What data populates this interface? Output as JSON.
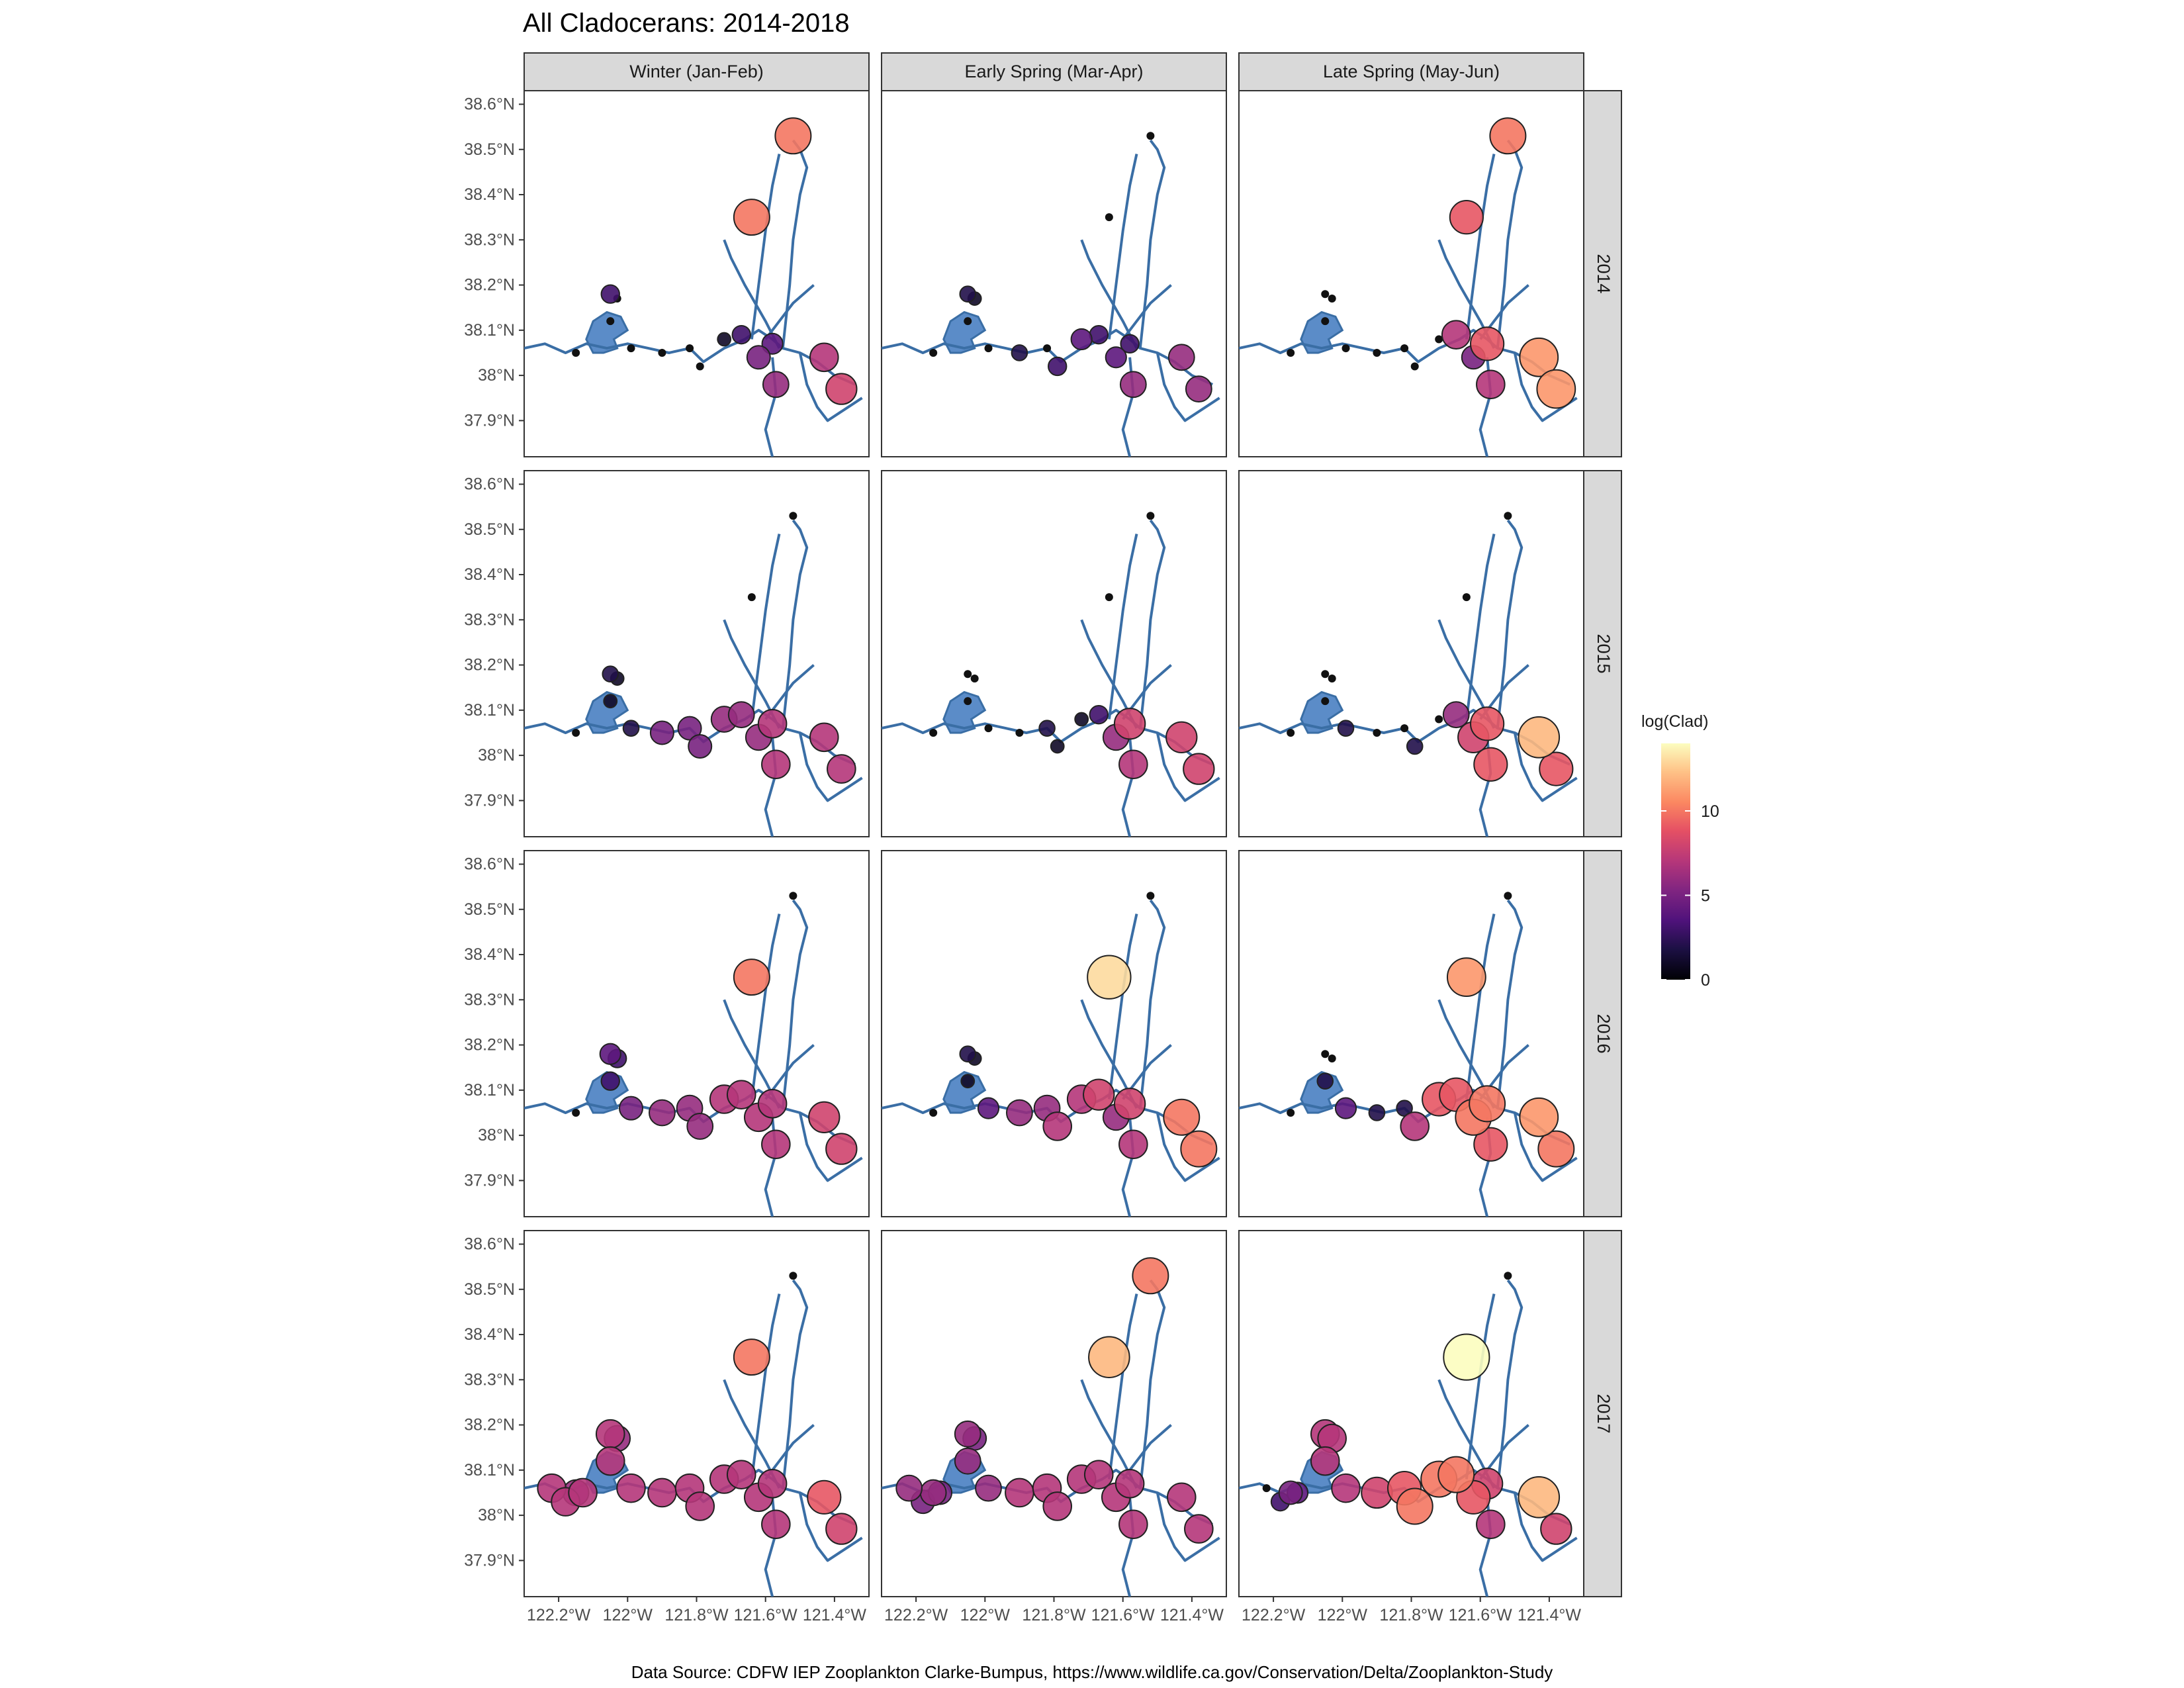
{
  "title": "All Cladocerans: 2014-2018",
  "caption": "Data Source: CDFW IEP Zooplankton Clarke-Bumpus, https://www.wildlife.ca.gov/Conservation/Delta/Zooplankton-Study",
  "facets": {
    "columns": [
      "Winter (Jan-Feb)",
      "Early Spring (Mar-Apr)",
      "Late Spring (May-Jun)"
    ],
    "rows": [
      "2014",
      "2015",
      "2016",
      "2017"
    ]
  },
  "axes": {
    "x_ticks": [
      "122.2°W",
      "122°W",
      "121.8°W",
      "121.6°W",
      "121.4°W"
    ],
    "y_ticks": [
      "38.6°N",
      "38.5°N",
      "38.4°N",
      "38.3°N",
      "38.2°N",
      "38.1°N",
      "38°N",
      "37.9°N"
    ]
  },
  "legend": {
    "title": "log(Clad)",
    "breaks": [
      "0",
      "5",
      "10"
    ],
    "range": [
      0,
      14
    ]
  },
  "colors": {
    "water_line": "#3a6ea5",
    "water_fill": "#5b8cc8",
    "strip_fill": "#d9d9d9",
    "point_outline": "#222222",
    "zero_point": "#111111"
  },
  "chart_data": {
    "type": "scatter",
    "description_of_encoding": "point size and color = log(Clad) per station",
    "stations": [
      {
        "id": "S1",
        "lon": -121.52,
        "lat": 38.53
      },
      {
        "id": "S2",
        "lon": -121.64,
        "lat": 38.35
      },
      {
        "id": "S3",
        "lon": -122.05,
        "lat": 38.18
      },
      {
        "id": "S4",
        "lon": -122.03,
        "lat": 38.17
      },
      {
        "id": "S5",
        "lon": -122.05,
        "lat": 38.12
      },
      {
        "id": "S6",
        "lon": -122.15,
        "lat": 38.05
      },
      {
        "id": "S7",
        "lon": -121.99,
        "lat": 38.06
      },
      {
        "id": "S8",
        "lon": -121.9,
        "lat": 38.05
      },
      {
        "id": "S9",
        "lon": -121.82,
        "lat": 38.06
      },
      {
        "id": "S10",
        "lon": -121.79,
        "lat": 38.02
      },
      {
        "id": "S11",
        "lon": -121.72,
        "lat": 38.08
      },
      {
        "id": "S12",
        "lon": -121.67,
        "lat": 38.09
      },
      {
        "id": "S13",
        "lon": -121.62,
        "lat": 38.04
      },
      {
        "id": "S14",
        "lon": -121.58,
        "lat": 38.07
      },
      {
        "id": "S15",
        "lon": -121.57,
        "lat": 37.98
      },
      {
        "id": "S16",
        "lon": -121.43,
        "lat": 38.04
      },
      {
        "id": "S17",
        "lon": -121.38,
        "lat": 37.97
      },
      {
        "id": "S18",
        "lon": -122.22,
        "lat": 38.06
      },
      {
        "id": "S19",
        "lon": -122.18,
        "lat": 38.03
      },
      {
        "id": "S20",
        "lon": -122.13,
        "lat": 38.05
      }
    ],
    "values": {
      "2014": {
        "Winter (Jan-Feb)": [
          10,
          10,
          3,
          0,
          0,
          0,
          0,
          0,
          0,
          0,
          1,
          3,
          5,
          4,
          6,
          7,
          8,
          null,
          null,
          null
        ],
        "Early Spring (Mar-Apr)": [
          0,
          0,
          2,
          1,
          0,
          0,
          0,
          2,
          0,
          3,
          4,
          3,
          4,
          3,
          6,
          6,
          6,
          null,
          null,
          null
        ],
        "Late Spring (May-Jun)": [
          10,
          9,
          0,
          0,
          0,
          0,
          0,
          0,
          0,
          0,
          0,
          7,
          5,
          9,
          7,
          11,
          11,
          null,
          null,
          null
        ]
      },
      "2015": {
        "Winter (Jan-Feb)": [
          0,
          0,
          2,
          1,
          1,
          0,
          2,
          5,
          5,
          5,
          6,
          6,
          6,
          7,
          7,
          7,
          7,
          null,
          null,
          null
        ],
        "Early Spring (Mar-Apr)": [
          0,
          0,
          0,
          0,
          0,
          0,
          0,
          0,
          2,
          1,
          1,
          3,
          6,
          8,
          7,
          8,
          8,
          null,
          null,
          null
        ],
        "Late Spring (May-Jun)": [
          0,
          0,
          0,
          0,
          0,
          0,
          2,
          0,
          0,
          2,
          0,
          6,
          8,
          9,
          9,
          12,
          9,
          null,
          null,
          null
        ]
      },
      "2016": {
        "Winter (Jan-Feb)": [
          0,
          10,
          4,
          3,
          3,
          0,
          5,
          6,
          6,
          6,
          7,
          7,
          7,
          7,
          7,
          8,
          8,
          null,
          null,
          null
        ],
        "Early Spring (Mar-Apr)": [
          0,
          13,
          2,
          1,
          1,
          0,
          4,
          6,
          6,
          7,
          7,
          8,
          6,
          8,
          7,
          10,
          10,
          null,
          null,
          null
        ],
        "Late Spring (May-Jun)": [
          0,
          11,
          0,
          0,
          2,
          0,
          4,
          2,
          2,
          7,
          9,
          9,
          10,
          10,
          9,
          11,
          10,
          null,
          null,
          null
        ]
      },
      "2017": {
        "Winter (Jan-Feb)": [
          0,
          10,
          7,
          6,
          7,
          6,
          7,
          7,
          7,
          7,
          7,
          7,
          7,
          7,
          7,
          9,
          8,
          7,
          7,
          7
        ],
        "Early Spring (Mar-Apr)": [
          10,
          12,
          6,
          5,
          6,
          6,
          6,
          7,
          7,
          7,
          7,
          7,
          7,
          7,
          7,
          7,
          7,
          6,
          5,
          5
        ],
        "Late Spring (May-Jun)": [
          0,
          14,
          7,
          7,
          7,
          5,
          7,
          8,
          9,
          10,
          10,
          10,
          9,
          8,
          7,
          12,
          8,
          0,
          3,
          4
        ]
      }
    },
    "xlim": [
      -122.3,
      -121.3
    ],
    "ylim": [
      37.82,
      38.63
    ],
    "legend_placement": "right"
  }
}
